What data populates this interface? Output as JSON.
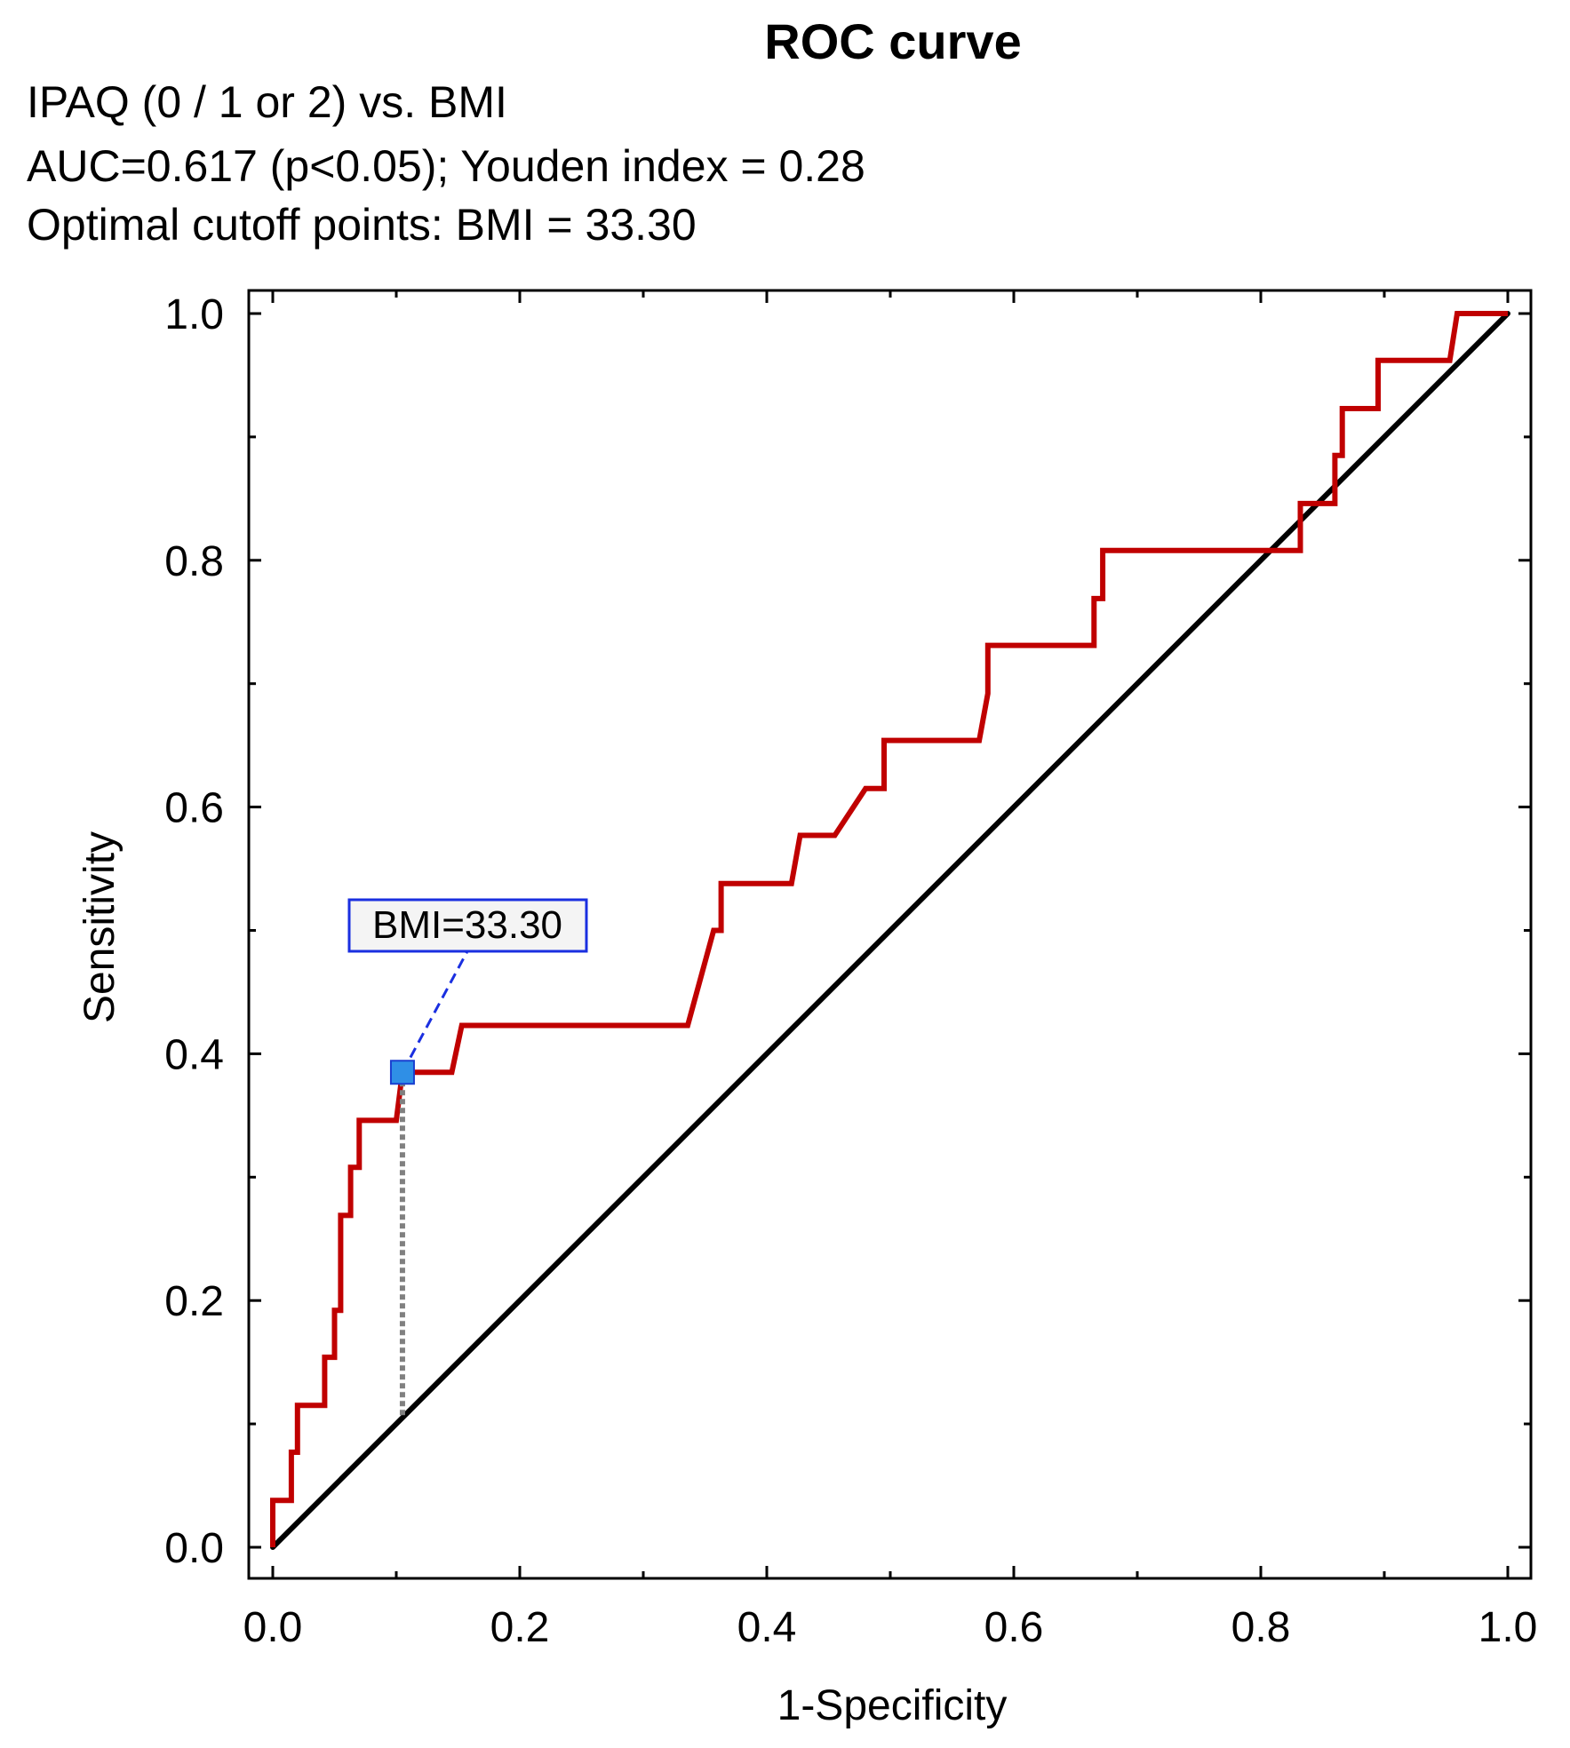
{
  "chart_data": {
    "type": "line",
    "title": "ROC curve",
    "subtitle_lines": [
      "IPAQ (0 / 1 or 2) vs. BMI",
      "AUC=0.617 (p<0.05); Youden index  = 0.28",
      "Optimal cutoff points: BMI = 33.30"
    ],
    "xlabel": "1-Specificity",
    "ylabel": "Sensitivity",
    "xlim": [
      0,
      1
    ],
    "ylim": [
      0,
      1
    ],
    "xticks": [
      "0.0",
      "0.2",
      "0.4",
      "0.6",
      "0.8",
      "1.0"
    ],
    "yticks": [
      "0.0",
      "0.2",
      "0.4",
      "0.6",
      "0.8",
      "1.0"
    ],
    "grid": false,
    "series": [
      {
        "color": "#c00000",
        "points": [
          [
            0.0,
            0.0
          ],
          [
            0.0,
            0.038
          ],
          [
            0.015,
            0.038
          ],
          [
            0.015,
            0.077
          ],
          [
            0.02,
            0.077
          ],
          [
            0.02,
            0.115
          ],
          [
            0.042,
            0.115
          ],
          [
            0.042,
            0.154
          ],
          [
            0.05,
            0.154
          ],
          [
            0.05,
            0.192
          ],
          [
            0.055,
            0.192
          ],
          [
            0.055,
            0.269
          ],
          [
            0.063,
            0.269
          ],
          [
            0.063,
            0.308
          ],
          [
            0.07,
            0.308
          ],
          [
            0.07,
            0.346
          ],
          [
            0.1,
            0.346
          ],
          [
            0.105,
            0.385
          ],
          [
            0.145,
            0.385
          ],
          [
            0.153,
            0.423
          ],
          [
            0.336,
            0.423
          ],
          [
            0.357,
            0.5
          ],
          [
            0.363,
            0.5
          ],
          [
            0.363,
            0.538
          ],
          [
            0.42,
            0.538
          ],
          [
            0.427,
            0.577
          ],
          [
            0.455,
            0.577
          ],
          [
            0.48,
            0.615
          ],
          [
            0.495,
            0.615
          ],
          [
            0.495,
            0.654
          ],
          [
            0.572,
            0.654
          ],
          [
            0.579,
            0.692
          ],
          [
            0.579,
            0.731
          ],
          [
            0.665,
            0.731
          ],
          [
            0.665,
            0.769
          ],
          [
            0.672,
            0.769
          ],
          [
            0.672,
            0.808
          ],
          [
            0.832,
            0.808
          ],
          [
            0.832,
            0.846
          ],
          [
            0.86,
            0.846
          ],
          [
            0.86,
            0.885
          ],
          [
            0.866,
            0.885
          ],
          [
            0.866,
            0.923
          ],
          [
            0.895,
            0.923
          ],
          [
            0.895,
            0.962
          ],
          [
            0.953,
            0.962
          ],
          [
            0.959,
            1.0
          ],
          [
            1.0,
            1.0
          ]
        ]
      },
      {
        "color": "#000000",
        "points": [
          [
            0.0,
            0.0
          ],
          [
            1.0,
            1.0
          ]
        ]
      }
    ],
    "optimal_point": {
      "x": 0.105,
      "y": 0.385,
      "label": "BMI=33.30",
      "color": "#2f8fe6"
    }
  }
}
